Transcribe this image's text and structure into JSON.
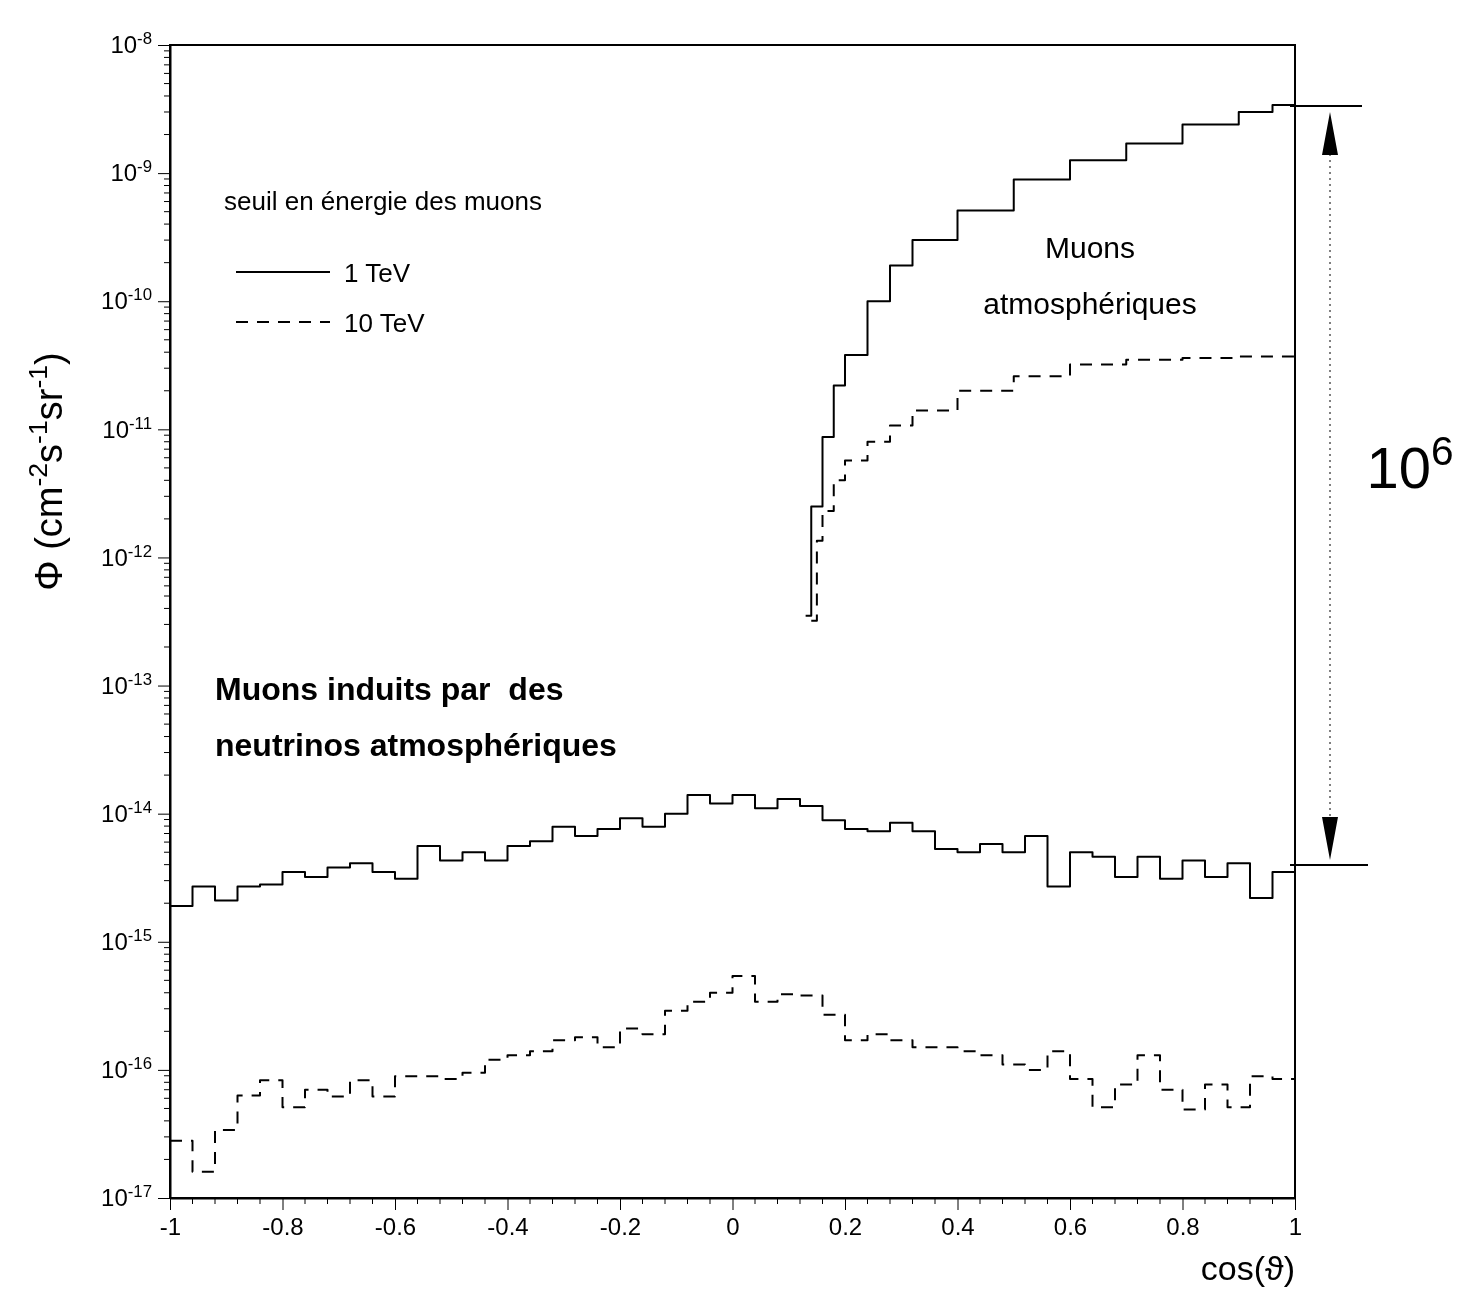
{
  "chart_data": {
    "type": "step",
    "xlabel": "cos(ϑ)",
    "ylabel": "Φ (cm$^{-2}$s$^{-1}$sr$^{-1}$)",
    "legend_title": "seuil en énergie des muons",
    "legend": "top left",
    "log": "y",
    "xlim": [
      -1,
      1
    ],
    "xticks": [
      -1,
      -0.8,
      -0.6,
      -0.4,
      -0.2,
      0,
      0.2,
      0.4,
      0.6,
      0.8,
      1
    ],
    "ylim": [
      1e-17,
      1e-08
    ],
    "yticks": [
      {
        "value": 1e-17,
        "label": "10$^{-17}$"
      },
      {
        "value": 1e-16,
        "label": "10$^{-16}$"
      },
      {
        "value": 1e-15,
        "label": "10$^{-15}$"
      },
      {
        "value": 1e-14,
        "label": "10$^{-14}$"
      },
      {
        "value": 1e-13,
        "label": "10$^{-13}$"
      },
      {
        "value": 1e-12,
        "label": "10$^{-12}$"
      },
      {
        "value": 1e-11,
        "label": "10$^{-11}$"
      },
      {
        "value": 1e-10,
        "label": "10$^{-10}$"
      },
      {
        "value": 1e-09,
        "label": "10$^{-9}$"
      },
      {
        "value": 1e-08,
        "label": "10$^{-8}$"
      }
    ],
    "annotations": [
      "Muons atmosphériques",
      "Muons induits par  des neutrinos atmosphériques",
      "10$^{6}$"
    ],
    "series": [
      {
        "name": "1 TeV",
        "color": "#000000",
        "line_style": "solid",
        "x": [
          0.13,
          0.14,
          0.16,
          0.18,
          0.2,
          0.24,
          0.28,
          0.32,
          0.4,
          0.5,
          0.6,
          0.7,
          0.8,
          0.9,
          0.96,
          1
        ],
        "values": [
          3.5e-13,
          2.5e-12,
          8.7e-12,
          2.2e-11,
          3.8e-11,
          1e-10,
          1.9e-10,
          3e-10,
          5.1e-10,
          8.9e-10,
          1.26e-09,
          1.7e-09,
          2.4e-09,
          3e-09,
          3.4e-09,
          3.4e-09
        ]
      },
      {
        "name": "10 TeV",
        "color": "#000000",
        "line_style": "dashed",
        "x": [
          0.14,
          0.15,
          0.16,
          0.18,
          0.2,
          0.24,
          0.28,
          0.32,
          0.4,
          0.5,
          0.6,
          0.7,
          0.8,
          0.9,
          1
        ],
        "values": [
          3.2e-13,
          1.35e-12,
          2.3e-12,
          4e-12,
          5.7e-12,
          8e-12,
          1.07e-11,
          1.4e-11,
          2e-11,
          2.6e-11,
          3.2e-11,
          3.5e-11,
          3.6e-11,
          3.7e-11,
          3.7e-11
        ]
      },
      {
        "color": "#000000",
        "line_style": "solid",
        "x": [
          -1,
          -0.96,
          -0.92,
          -0.88,
          -0.84,
          -0.8,
          -0.76,
          -0.72,
          -0.68,
          -0.64,
          -0.6,
          -0.56,
          -0.52,
          -0.48,
          -0.44,
          -0.4,
          -0.36,
          -0.32,
          -0.28,
          -0.24,
          -0.2,
          -0.16,
          -0.12,
          -0.08,
          -0.04,
          0,
          0.04,
          0.08,
          0.12,
          0.16,
          0.2,
          0.24,
          0.28,
          0.32,
          0.36,
          0.4,
          0.44,
          0.48,
          0.52,
          0.56,
          0.6,
          0.64,
          0.68,
          0.72,
          0.76,
          0.8,
          0.84,
          0.88,
          0.92,
          0.96,
          1
        ],
        "values": [
          1.9e-15,
          2.7e-15,
          2.1e-15,
          2.7e-15,
          2.8e-15,
          3.5e-15,
          3.2e-15,
          3.8e-15,
          4.1e-15,
          3.5e-15,
          3.1e-15,
          5.6e-15,
          4.3e-15,
          5e-15,
          4.3e-15,
          5.6e-15,
          6.1e-15,
          7.9e-15,
          6.7e-15,
          7.6e-15,
          9.2e-15,
          7.9e-15,
          1e-14,
          1.4e-14,
          1.2e-14,
          1.4e-14,
          1.1e-14,
          1.3e-14,
          1.15e-14,
          8.9e-15,
          7.6e-15,
          7.3e-15,
          8.5e-15,
          7.3e-15,
          5.3e-15,
          5e-15,
          5.8e-15,
          5e-15,
          6.7e-15,
          2.7e-15,
          5e-15,
          4.6e-15,
          3.2e-15,
          4.6e-15,
          3.1e-15,
          4.3e-15,
          3.2e-15,
          4.1e-15,
          2.2e-15,
          3.5e-15,
          3.5e-15
        ]
      },
      {
        "color": "#000000",
        "line_style": "dashed",
        "x": [
          -1,
          -0.96,
          -0.92,
          -0.88,
          -0.84,
          -0.8,
          -0.76,
          -0.72,
          -0.68,
          -0.64,
          -0.6,
          -0.56,
          -0.52,
          -0.48,
          -0.44,
          -0.4,
          -0.36,
          -0.32,
          -0.28,
          -0.24,
          -0.2,
          -0.16,
          -0.12,
          -0.08,
          -0.04,
          0,
          0.04,
          0.08,
          0.12,
          0.16,
          0.2,
          0.24,
          0.28,
          0.32,
          0.36,
          0.4,
          0.44,
          0.48,
          0.52,
          0.56,
          0.6,
          0.64,
          0.68,
          0.72,
          0.76,
          0.8,
          0.84,
          0.88,
          0.92,
          0.96,
          1
        ],
        "values": [
          2.8e-17,
          1.6e-17,
          3.4e-17,
          6.3e-17,
          8.3e-17,
          5.1e-17,
          7e-17,
          6.2e-17,
          8.3e-17,
          6.2e-17,
          8.9e-17,
          8.9e-17,
          8.5e-17,
          9.5e-17,
          1.2e-16,
          1.3e-16,
          1.4e-16,
          1.7e-16,
          1.8e-16,
          1.5e-16,
          2.1e-16,
          1.9e-16,
          2.9e-16,
          3.4e-16,
          4e-16,
          5.4e-16,
          3.4e-16,
          3.9e-16,
          3.8e-16,
          2.7e-16,
          1.7e-16,
          1.9e-16,
          1.7e-16,
          1.5e-16,
          1.5e-16,
          1.4e-16,
          1.3e-16,
          1.1e-16,
          1e-16,
          1.4e-16,
          8.5e-17,
          5.1e-17,
          7.7e-17,
          1.3e-16,
          7e-17,
          4.9e-17,
          7.7e-17,
          5.1e-17,
          8.9e-17,
          8.5e-17,
          8.5e-17
        ]
      }
    ]
  }
}
